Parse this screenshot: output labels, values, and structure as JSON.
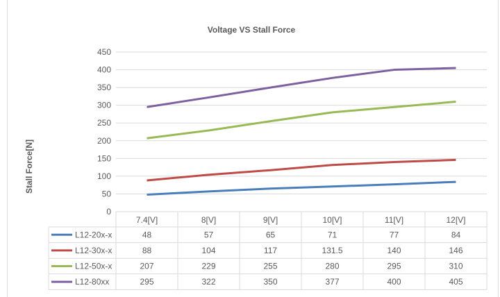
{
  "chart_data": {
    "type": "line",
    "title": "Voltage VS Stall Force",
    "xlabel": "",
    "ylabel": "Stall Force[N]",
    "ylim": [
      0,
      450
    ],
    "yticks": [
      0,
      50,
      100,
      150,
      200,
      250,
      300,
      350,
      400,
      450
    ],
    "grid": true,
    "legend": "bottom data table",
    "categories": [
      "7.4[V]",
      "8[V]",
      "9[V]",
      "10[V]",
      "11[V]",
      "12[V]"
    ],
    "series": [
      {
        "name": "L12-20x-x",
        "color": "#4a7ebb",
        "values": [
          48,
          57,
          65,
          71,
          77,
          84
        ]
      },
      {
        "name": "L12-30x-x",
        "color": "#be4b48",
        "values": [
          88,
          104,
          117,
          131.5,
          140,
          146
        ]
      },
      {
        "name": "L12-50x-x",
        "color": "#98b954",
        "values": [
          207,
          229,
          255,
          280,
          295,
          310
        ]
      },
      {
        "name": "L12-80xx",
        "color": "#7d60a0",
        "values": [
          295,
          322,
          350,
          377,
          400,
          405
        ]
      }
    ]
  }
}
